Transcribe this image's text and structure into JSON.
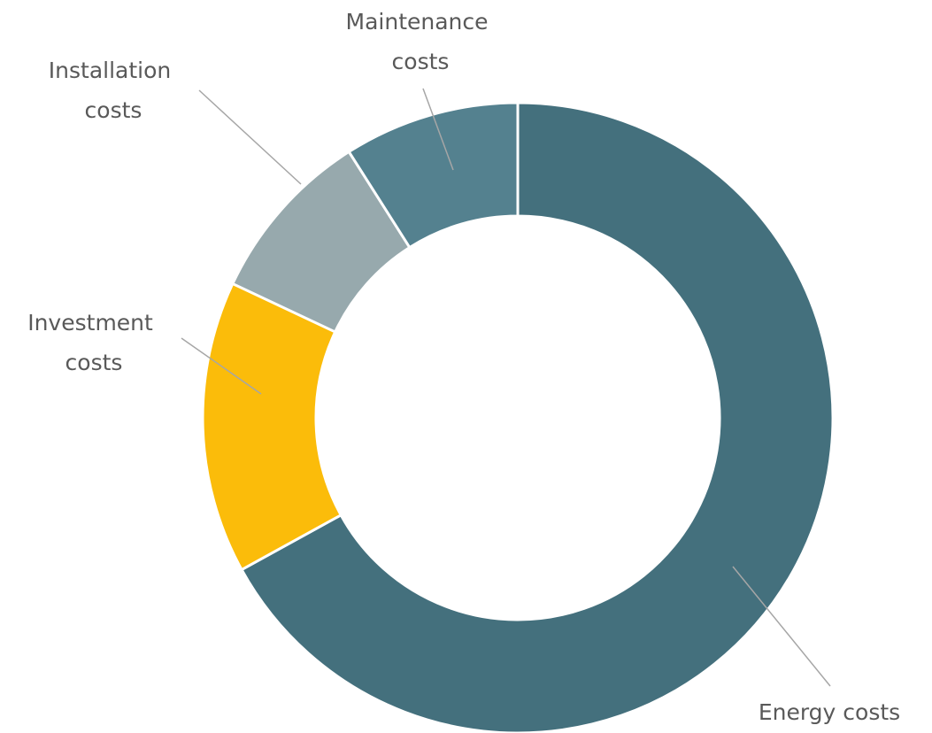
{
  "chart_data": {
    "type": "pie",
    "variant": "doughnut",
    "categories": [
      "Energy costs",
      "Investment costs",
      "Installation costs",
      "Maintenance costs"
    ],
    "values": [
      67,
      15,
      9,
      9
    ],
    "colors": [
      "#44707d",
      "#fbbc0a",
      "#97a9ad",
      "#54818f"
    ],
    "labels": {
      "energy": [
        "Energy costs"
      ],
      "investment": [
        "Investment",
        "costs"
      ],
      "installation": [
        "Installation",
        "costs"
      ],
      "maintenance": [
        "Maintenance",
        "costs"
      ]
    },
    "legend": "none",
    "label_placement": "outside with leader lines"
  }
}
